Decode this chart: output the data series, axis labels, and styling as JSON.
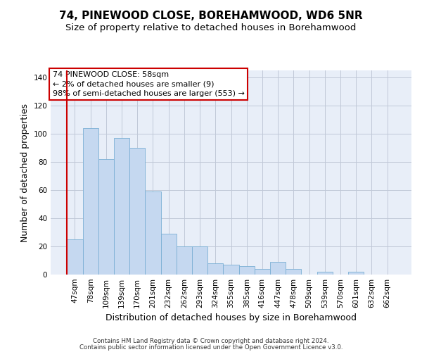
{
  "title": "74, PINEWOOD CLOSE, BOREHAMWOOD, WD6 5NR",
  "subtitle": "Size of property relative to detached houses in Borehamwood",
  "xlabel": "Distribution of detached houses by size in Borehamwood",
  "ylabel": "Number of detached properties",
  "categories": [
    "47sqm",
    "78sqm",
    "109sqm",
    "139sqm",
    "170sqm",
    "201sqm",
    "232sqm",
    "262sqm",
    "293sqm",
    "324sqm",
    "355sqm",
    "385sqm",
    "416sqm",
    "447sqm",
    "478sqm",
    "509sqm",
    "539sqm",
    "570sqm",
    "601sqm",
    "632sqm",
    "662sqm"
  ],
  "values": [
    25,
    104,
    82,
    97,
    90,
    59,
    29,
    20,
    20,
    8,
    7,
    6,
    4,
    9,
    4,
    0,
    2,
    0,
    2,
    0,
    0
  ],
  "bar_color": "#c5d8f0",
  "bar_edge_color": "#7aafd4",
  "highlight_color": "#cc0000",
  "annotation_text": "74 PINEWOOD CLOSE: 58sqm\n← 2% of detached houses are smaller (9)\n98% of semi-detached houses are larger (553) →",
  "annotation_box_facecolor": "#ffffff",
  "annotation_box_edge_color": "#cc0000",
  "ylim": [
    0,
    145
  ],
  "yticks": [
    0,
    20,
    40,
    60,
    80,
    100,
    120,
    140
  ],
  "background_color": "#e8eef8",
  "grid_color": "#c0c8d8",
  "footer_line1": "Contains HM Land Registry data © Crown copyright and database right 2024.",
  "footer_line2": "Contains public sector information licensed under the Open Government Licence v3.0.",
  "title_fontsize": 11,
  "subtitle_fontsize": 9.5,
  "axis_label_fontsize": 9,
  "tick_fontsize": 7.5,
  "annotation_fontsize": 8
}
